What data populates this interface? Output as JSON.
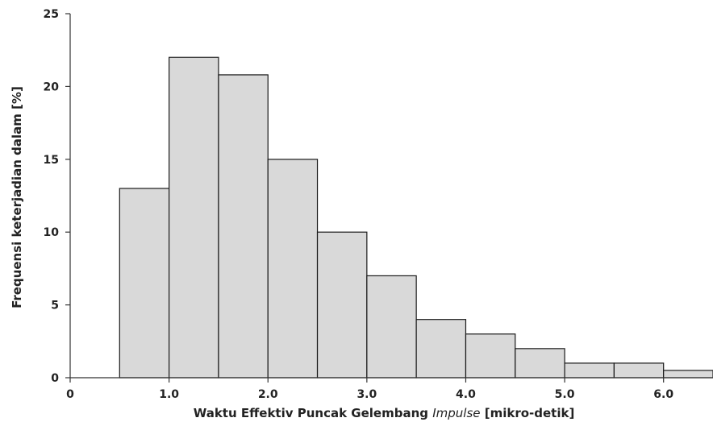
{
  "chart_data": {
    "type": "bar",
    "subtype": "histogram",
    "xlabel_prefix": "Waktu Effektiv Puncak Gelembang ",
    "xlabel_italic": "Impulse",
    "xlabel_suffix": "  [mikro-detik]",
    "ylabel": "Frequensi keterjadian dalam [%]",
    "bins": [
      {
        "x0": 0.5,
        "x1": 1.0,
        "value": 13
      },
      {
        "x0": 1.0,
        "x1": 1.5,
        "value": 22
      },
      {
        "x0": 1.5,
        "x1": 2.0,
        "value": 20.8
      },
      {
        "x0": 2.0,
        "x1": 2.5,
        "value": 15
      },
      {
        "x0": 2.5,
        "x1": 3.0,
        "value": 10
      },
      {
        "x0": 3.0,
        "x1": 3.5,
        "value": 7
      },
      {
        "x0": 3.5,
        "x1": 4.0,
        "value": 4
      },
      {
        "x0": 4.0,
        "x1": 4.5,
        "value": 3
      },
      {
        "x0": 4.5,
        "x1": 5.0,
        "value": 2
      },
      {
        "x0": 5.0,
        "x1": 5.5,
        "value": 1
      },
      {
        "x0": 5.5,
        "x1": 6.0,
        "value": 1
      },
      {
        "x0": 6.0,
        "x1": 6.5,
        "value": 0.5
      }
    ],
    "xlim": [
      0,
      6.5
    ],
    "ylim": [
      0,
      25
    ],
    "xticks": [
      0,
      1.0,
      2.0,
      3.0,
      4.0,
      5.0,
      6.0
    ],
    "xtick_labels": [
      "0",
      "1.0",
      "2.0",
      "3.0",
      "4.0",
      "5.0",
      "6.0"
    ],
    "yticks": [
      0,
      5,
      10,
      15,
      20,
      25
    ],
    "ytick_labels": [
      "0",
      "5",
      "10",
      "15",
      "20",
      "25"
    ],
    "grid": false,
    "colors": {
      "bar_fill": "#d9d9d9",
      "bar_stroke": "#1a1a1a"
    }
  }
}
